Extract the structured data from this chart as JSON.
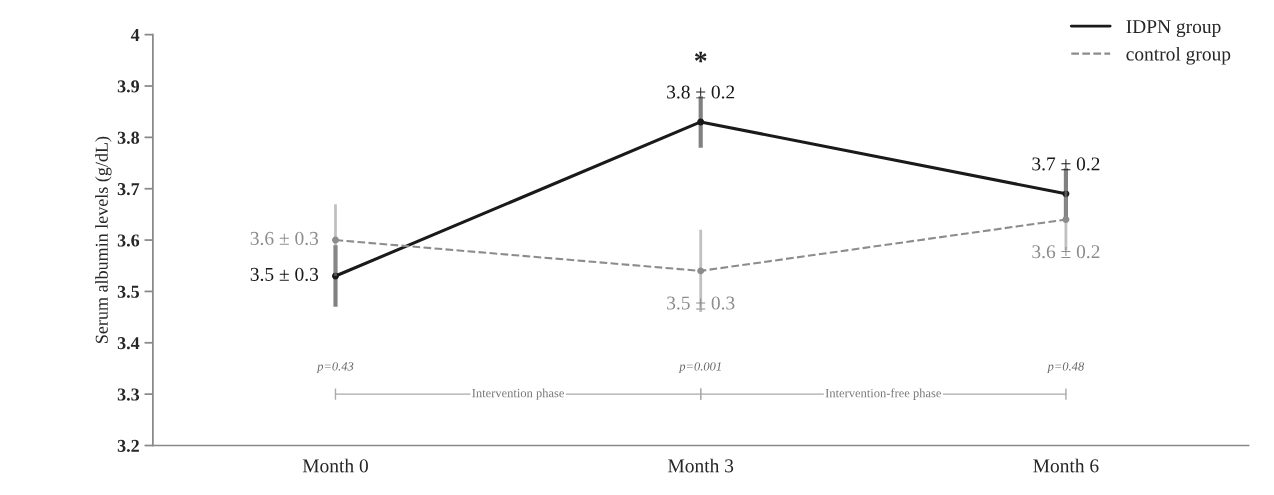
{
  "chart_data": {
    "type": "line",
    "categories": [
      "Month 0",
      "Month 3",
      "Month 6"
    ],
    "ylabel": "Serum albumin levels (g/dL)",
    "ylim": [
      3.2,
      4
    ],
    "yticks": [
      {
        "value": 3.2,
        "label": "3.2"
      },
      {
        "value": 3.3,
        "label": "3.3"
      },
      {
        "value": 3.4,
        "label": "3.4"
      },
      {
        "value": 3.5,
        "label": "3.5"
      },
      {
        "value": 3.6,
        "label": "3.6"
      },
      {
        "value": 3.7,
        "label": "3.7"
      },
      {
        "value": 3.8,
        "label": "3.8"
      },
      {
        "value": 3.9,
        "label": "3.9"
      },
      {
        "value": 4,
        "label": "4"
      }
    ],
    "series": [
      {
        "name": "IDPN group",
        "color": "#1a1a1a",
        "line_style": "solid",
        "values": [
          3.53,
          3.83,
          3.69
        ],
        "errors": [
          0.06,
          0.05,
          0.05
        ],
        "value_labels": [
          "3.5 ± 0.3",
          "3.8 ± 0.2",
          "3.7 ± 0.2"
        ]
      },
      {
        "name": "control group",
        "color": "#8c8c8c",
        "line_style": "dashed",
        "values": [
          3.6,
          3.54,
          3.64
        ],
        "errors": [
          0.07,
          0.08,
          0.06
        ],
        "value_labels": [
          "3.6 ± 0.3",
          "3.5 ± 0.3",
          "3.6 ± 0.2"
        ]
      }
    ],
    "marker": "circle",
    "grid": false,
    "legend": "top right",
    "annotations": [
      "*",
      "p=0.43",
      "p=0.001",
      "p=0.48",
      "Intervention phase",
      "Intervention-free phase"
    ]
  }
}
